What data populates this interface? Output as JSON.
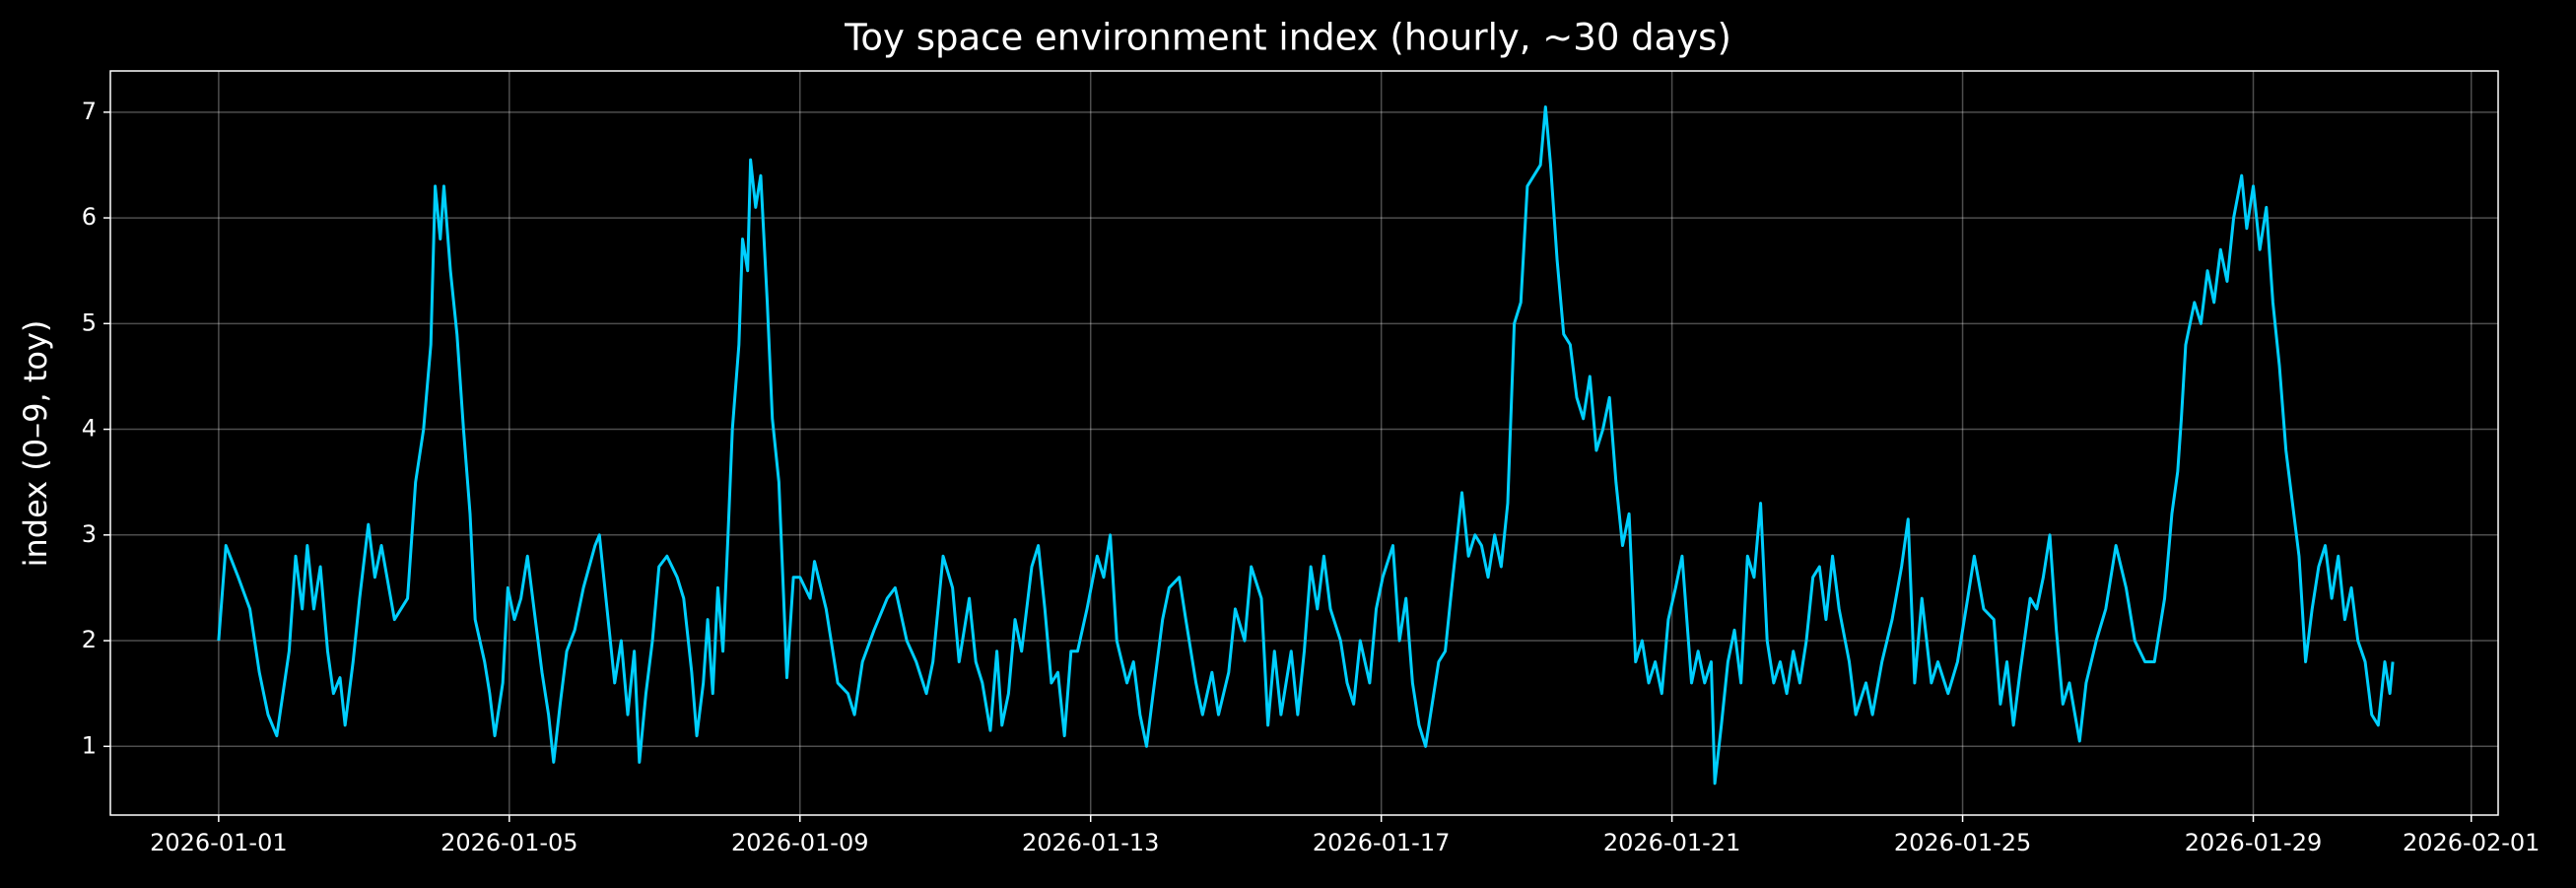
{
  "chart_data": {
    "type": "line",
    "title": "Toy space environment index (hourly, ~30 days)",
    "y_label": "index (0–9, toy)",
    "color": "#00cfff",
    "grid": true,
    "x": [
      0,
      0.1,
      0.27,
      0.43,
      0.56,
      0.68,
      0.8,
      0.97,
      1.06,
      1.15,
      1.22,
      1.31,
      1.4,
      1.5,
      1.58,
      1.67,
      1.74,
      1.85,
      1.94,
      2.06,
      2.15,
      2.24,
      2.42,
      2.6,
      2.71,
      2.82,
      2.92,
      2.98,
      3.05,
      3.1,
      3.19,
      3.28,
      3.37,
      3.46,
      3.53,
      3.66,
      3.73,
      3.8,
      3.91,
      3.98,
      4.07,
      4.16,
      4.25,
      4.34,
      4.45,
      4.54,
      4.61,
      4.7,
      4.79,
      4.9,
      5.02,
      5.18,
      5.24,
      5.36,
      5.45,
      5.54,
      5.63,
      5.72,
      5.79,
      5.88,
      5.97,
      6.06,
      6.17,
      6.31,
      6.4,
      6.51,
      6.58,
      6.67,
      6.73,
      6.8,
      6.87,
      6.94,
      7.01,
      7.07,
      7.16,
      7.21,
      7.28,
      7.32,
      7.39,
      7.46,
      7.55,
      7.62,
      7.71,
      7.77,
      7.82,
      7.91,
      8.0,
      8.14,
      8.2,
      8.36,
      8.52,
      8.66,
      8.75,
      8.86,
      9.02,
      9.2,
      9.31,
      9.47,
      9.6,
      9.74,
      9.83,
      9.97,
      10.1,
      10.19,
      10.33,
      10.42,
      10.51,
      10.62,
      10.71,
      10.78,
      10.87,
      10.96,
      11.05,
      11.19,
      11.28,
      11.37,
      11.46,
      11.55,
      11.64,
      11.73,
      11.82,
      11.95,
      12.09,
      12.18,
      12.27,
      12.36,
      12.5,
      12.59,
      12.68,
      12.77,
      12.86,
      12.99,
      13.08,
      13.22,
      13.31,
      13.45,
      13.54,
      13.67,
      13.76,
      13.9,
      13.99,
      14.12,
      14.21,
      14.35,
      14.44,
      14.53,
      14.62,
      14.76,
      14.85,
      14.94,
      15.03,
      15.12,
      15.21,
      15.3,
      15.44,
      15.53,
      15.62,
      15.71,
      15.84,
      15.93,
      16.02,
      16.16,
      16.25,
      16.34,
      16.43,
      16.52,
      16.61,
      16.7,
      16.79,
      16.88,
      16.97,
      17.11,
      17.2,
      17.29,
      17.38,
      17.47,
      17.56,
      17.65,
      17.74,
      17.83,
      17.92,
      18.01,
      18.1,
      18.19,
      18.26,
      18.33,
      18.42,
      18.51,
      18.6,
      18.69,
      18.78,
      18.87,
      18.96,
      19.05,
      19.14,
      19.23,
      19.32,
      19.41,
      19.5,
      19.59,
      19.68,
      19.77,
      19.86,
      19.95,
      20.05,
      20.14,
      20.27,
      20.36,
      20.45,
      20.54,
      20.59,
      20.68,
      20.77,
      20.86,
      20.95,
      21.04,
      21.13,
      21.22,
      21.31,
      21.4,
      21.49,
      21.58,
      21.67,
      21.76,
      21.85,
      21.94,
      22.03,
      22.12,
      22.21,
      22.3,
      22.44,
      22.53,
      22.67,
      22.76,
      22.89,
      23.03,
      23.16,
      23.25,
      23.34,
      23.44,
      23.57,
      23.66,
      23.8,
      23.93,
      24.07,
      24.16,
      24.29,
      24.43,
      24.52,
      24.61,
      24.7,
      24.79,
      24.93,
      25.02,
      25.11,
      25.2,
      25.29,
      25.38,
      25.47,
      25.61,
      25.7,
      25.84,
      25.97,
      26.11,
      26.25,
      26.37,
      26.51,
      26.64,
      26.78,
      26.88,
      26.96,
      27.01,
      27.07,
      27.19,
      27.28,
      27.37,
      27.46,
      27.55,
      27.64,
      27.73,
      27.84,
      27.91,
      28.0,
      28.09,
      28.18,
      28.27,
      28.36,
      28.45,
      28.54,
      28.63,
      28.72,
      28.81,
      28.9,
      28.99,
      29.08,
      29.17,
      29.26,
      29.35,
      29.44,
      29.54,
      29.63,
      29.72,
      29.81,
      29.88,
      29.92
    ],
    "values": [
      2.0,
      2.9,
      2.6,
      2.3,
      1.7,
      1.3,
      1.1,
      1.9,
      2.8,
      2.3,
      2.9,
      2.3,
      2.7,
      1.9,
      1.5,
      1.65,
      1.2,
      1.8,
      2.4,
      3.1,
      2.6,
      2.9,
      2.2,
      2.4,
      3.5,
      4.0,
      4.8,
      6.3,
      5.8,
      6.3,
      5.5,
      4.9,
      4.0,
      3.2,
      2.2,
      1.8,
      1.5,
      1.1,
      1.6,
      2.5,
      2.2,
      2.4,
      2.8,
      2.3,
      1.7,
      1.3,
      0.85,
      1.4,
      1.9,
      2.1,
      2.5,
      2.9,
      3.0,
      2.2,
      1.6,
      2.0,
      1.3,
      1.9,
      0.85,
      1.5,
      2.0,
      2.7,
      2.8,
      2.6,
      2.4,
      1.7,
      1.1,
      1.6,
      2.2,
      1.5,
      2.5,
      1.9,
      3.0,
      4.0,
      4.8,
      5.8,
      5.5,
      6.55,
      6.1,
      6.4,
      5.2,
      4.1,
      3.5,
      2.5,
      1.65,
      2.6,
      2.6,
      2.4,
      2.75,
      2.3,
      1.6,
      1.5,
      1.3,
      1.8,
      2.1,
      2.4,
      2.5,
      2.0,
      1.8,
      1.5,
      1.8,
      2.8,
      2.5,
      1.8,
      2.4,
      1.8,
      1.6,
      1.15,
      1.9,
      1.2,
      1.5,
      2.2,
      1.9,
      2.7,
      2.9,
      2.3,
      1.6,
      1.7,
      1.1,
      1.9,
      1.9,
      2.3,
      2.8,
      2.6,
      3.0,
      2.0,
      1.6,
      1.8,
      1.3,
      1.0,
      1.5,
      2.2,
      2.5,
      2.6,
      2.2,
      1.6,
      1.3,
      1.7,
      1.3,
      1.7,
      2.3,
      2.0,
      2.7,
      2.4,
      1.2,
      1.9,
      1.3,
      1.9,
      1.3,
      1.9,
      2.7,
      2.3,
      2.8,
      2.3,
      2.0,
      1.6,
      1.4,
      2.0,
      1.6,
      2.3,
      2.6,
      2.9,
      2.0,
      2.4,
      1.6,
      1.2,
      1.0,
      1.4,
      1.8,
      1.9,
      2.5,
      3.4,
      2.8,
      3.0,
      2.9,
      2.6,
      3.0,
      2.7,
      3.3,
      5.0,
      5.2,
      6.3,
      6.4,
      6.5,
      7.05,
      6.5,
      5.6,
      4.9,
      4.8,
      4.3,
      4.1,
      4.5,
      3.8,
      4.0,
      4.3,
      3.5,
      2.9,
      3.2,
      1.8,
      2.0,
      1.6,
      1.8,
      1.5,
      2.2,
      2.5,
      2.8,
      1.6,
      1.9,
      1.6,
      1.8,
      0.65,
      1.2,
      1.8,
      2.1,
      1.6,
      2.8,
      2.6,
      3.3,
      2.0,
      1.6,
      1.8,
      1.5,
      1.9,
      1.6,
      2.0,
      2.6,
      2.7,
      2.2,
      2.8,
      2.3,
      1.8,
      1.3,
      1.6,
      1.3,
      1.8,
      2.2,
      2.7,
      3.15,
      1.6,
      2.4,
      1.6,
      1.8,
      1.5,
      1.8,
      2.4,
      2.8,
      2.3,
      2.2,
      1.4,
      1.8,
      1.2,
      1.7,
      2.4,
      2.3,
      2.6,
      3.0,
      2.1,
      1.4,
      1.6,
      1.05,
      1.6,
      2.0,
      2.3,
      2.9,
      2.5,
      2.0,
      1.8,
      1.8,
      2.4,
      3.2,
      3.6,
      4.1,
      4.8,
      5.2,
      5.0,
      5.5,
      5.2,
      5.7,
      5.4,
      6.0,
      6.4,
      5.9,
      6.3,
      5.7,
      6.1,
      5.2,
      4.6,
      3.8,
      3.3,
      2.8,
      1.8,
      2.3,
      2.7,
      2.9,
      2.4,
      2.8,
      2.2,
      2.5,
      2.0,
      1.8,
      1.3,
      1.2,
      1.8,
      1.5,
      1.8
    ],
    "xlim": [
      -1.49,
      31.37
    ],
    "xticks": [
      {
        "value": 0,
        "label": "2026-01-01"
      },
      {
        "value": 4,
        "label": "2026-01-05"
      },
      {
        "value": 8,
        "label": "2026-01-09"
      },
      {
        "value": 12,
        "label": "2026-01-13"
      },
      {
        "value": 16,
        "label": "2026-01-17"
      },
      {
        "value": 20,
        "label": "2026-01-21"
      },
      {
        "value": 24,
        "label": "2026-01-25"
      },
      {
        "value": 28,
        "label": "2026-01-29"
      },
      {
        "value": 31,
        "label": "2026-02-01"
      }
    ],
    "ylim": [
      0.35,
      7.39
    ],
    "yticks": [
      1,
      2,
      3,
      4,
      5,
      6,
      7
    ]
  }
}
